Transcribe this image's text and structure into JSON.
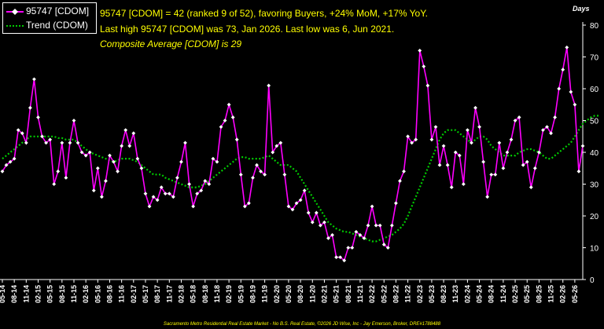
{
  "chart_data": {
    "type": "line",
    "x_unit_label": "Days",
    "ylim": [
      0,
      80
    ],
    "y_ticks": [
      "0",
      "10",
      "20",
      "30",
      "40",
      "50",
      "60",
      "70",
      "80"
    ],
    "x_tick_labels": [
      "05-14",
      "08-14",
      "11-14",
      "02-15",
      "05-15",
      "08-15",
      "11-15",
      "02-16",
      "05-16",
      "08-16",
      "11-16",
      "02-17",
      "05-17",
      "08-17",
      "11-17",
      "02-18",
      "05-18",
      "08-18",
      "11-18",
      "02-19",
      "05-19",
      "08-19",
      "11-19",
      "02-20",
      "05-20",
      "08-20",
      "11-20",
      "02-21",
      "05-21",
      "08-21",
      "11-21",
      "02-22",
      "05-22",
      "08-22",
      "11-22",
      "02-23",
      "05-23",
      "08-23",
      "11-23",
      "02-24",
      "05-24",
      "08-24",
      "11-24",
      "02-25",
      "05-25",
      "08-25",
      "11-25",
      "02-26",
      "05-26"
    ],
    "grid": false,
    "legend_position": "top-left",
    "series": [
      {
        "name": "95747 [CDOM]",
        "color": "#ff00ff",
        "marker": "diamond-white",
        "values": [
          34,
          36,
          37,
          38,
          47,
          46,
          43,
          54,
          63,
          51,
          45,
          43,
          44,
          30,
          34,
          43,
          32,
          43,
          50,
          43,
          40,
          39,
          40,
          28,
          35,
          26,
          31,
          39,
          37,
          34,
          42,
          47,
          42,
          46,
          38,
          35,
          27,
          23,
          26,
          25,
          29,
          27,
          27,
          26,
          32,
          37,
          43,
          30,
          23,
          27,
          28,
          31,
          30,
          38,
          37,
          48,
          50,
          55,
          51,
          44,
          33,
          23,
          24,
          32,
          36,
          34,
          33,
          61,
          40,
          42,
          43,
          33,
          23,
          22,
          24,
          25,
          28,
          21,
          18,
          21,
          17,
          18,
          13,
          14,
          7,
          7,
          6,
          10,
          10,
          15,
          14,
          13,
          17,
          23,
          17,
          17,
          11,
          10,
          17,
          24,
          31,
          34,
          45,
          43,
          44,
          72,
          67,
          61,
          44,
          48,
          36,
          42,
          36,
          29,
          40,
          39,
          30,
          47,
          43,
          54,
          48,
          37,
          26,
          33,
          33,
          43,
          35,
          40,
          44,
          50,
          51,
          36,
          37,
          29,
          35,
          40,
          47,
          48,
          46,
          51,
          60,
          66,
          73,
          59,
          55,
          34,
          42
        ]
      },
      {
        "name": "Trend (CDOM)",
        "color": "#00cc00",
        "style": "dotted",
        "values": [
          38,
          39,
          40,
          41,
          42,
          43,
          44,
          45,
          45,
          45,
          45,
          45,
          45,
          45,
          44.5,
          44.5,
          44,
          44,
          44,
          43,
          42,
          41,
          40,
          39.5,
          39,
          38.5,
          38,
          37.5,
          37,
          37.5,
          38,
          38,
          38,
          37.5,
          37,
          36,
          35,
          34,
          33,
          33,
          33,
          32,
          31.5,
          31,
          30.5,
          30,
          29.5,
          29,
          29,
          29,
          29.5,
          30,
          31,
          32,
          33,
          34,
          35,
          36,
          37,
          38,
          38.5,
          38.5,
          38,
          38,
          38,
          38,
          38.5,
          39,
          38,
          37,
          36,
          36,
          36,
          35,
          34,
          32,
          30,
          28,
          26,
          24,
          22,
          20,
          18,
          17,
          16,
          15.5,
          15,
          15,
          14.5,
          14,
          13.5,
          13,
          12.5,
          12,
          12,
          12.5,
          13,
          13.5,
          14,
          15,
          16,
          17.5,
          20,
          23,
          26,
          29,
          32,
          35,
          38,
          41,
          44,
          46,
          47,
          47,
          47,
          46,
          45,
          44,
          43,
          44,
          45,
          45,
          44,
          42,
          41,
          40,
          39,
          39,
          39,
          39,
          40,
          40.5,
          41,
          41,
          40.5,
          40,
          39,
          38,
          38,
          39,
          40,
          41,
          42,
          43,
          45,
          47,
          49,
          50,
          51,
          51.5,
          51.5
        ]
      }
    ]
  },
  "annotations": {
    "line1": "95747 [CDOM] = 42 (ranked 9 of 52), favoring Buyers, +24% MoM, +17% YoY.",
    "line2": "Last high 95747 [CDOM] was 73, Jan 2026. Last low was 6, Jun 2021.",
    "line3": "Composite Average [CDOM] is 29"
  },
  "footer": "Sacramento Metro Residential Real Estate Market - No B.S. Real Estate, ©2026 JD Wise, Inc - Jay Emerson, Broker, DRE#1788488",
  "colors": {
    "background": "#000000",
    "axis": "#ffffff",
    "annotation_text": "#ffff00"
  }
}
